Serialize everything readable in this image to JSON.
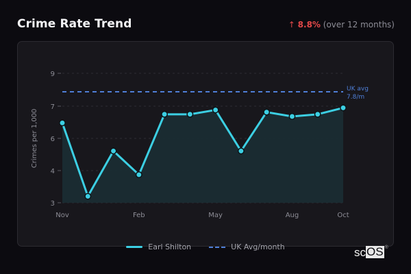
{
  "header": {
    "title": "Crime Rate Trend",
    "change_arrow": "↑",
    "change_value": "8.8%",
    "change_note": "(over 12 months)"
  },
  "legend": {
    "series_label": "Earl Shilton",
    "avg_label": "UK Avg/month"
  },
  "annotation": {
    "line1": "UK avg",
    "line2": "7.8/m"
  },
  "logo": {
    "text_plain": "sc",
    "text_boxed": "OS",
    "mark": "®"
  },
  "colors": {
    "line": "#3ccfe3",
    "avg": "#4f7fd8",
    "fill": "#1a2c33",
    "negative_change": "#e04848"
  },
  "chart_data": {
    "type": "line",
    "title": "Crime Rate Trend",
    "xlabel": "",
    "ylabel": "Crimes per 1,000",
    "ylim": [
      3,
      9
    ],
    "yticks": [
      3,
      4,
      6,
      7,
      9
    ],
    "xtick_labels": [
      "Nov",
      "Feb",
      "May",
      "Aug",
      "Oct"
    ],
    "x": [
      "Nov",
      "Dec",
      "Jan",
      "Feb",
      "Mar",
      "Apr",
      "May",
      "Jun",
      "Jul",
      "Aug",
      "Sep",
      "Oct"
    ],
    "series": [
      {
        "name": "Earl Shilton",
        "values": [
          6.7,
          3.3,
          5.4,
          4.3,
          7.1,
          7.1,
          7.3,
          5.4,
          7.2,
          7.0,
          7.1,
          7.4
        ]
      },
      {
        "name": "UK Avg/month",
        "values": [
          7.8,
          7.8,
          7.8,
          7.8,
          7.8,
          7.8,
          7.8,
          7.8,
          7.8,
          7.8,
          7.8,
          7.8
        ]
      }
    ],
    "grid": true,
    "legend_position": "bottom"
  }
}
